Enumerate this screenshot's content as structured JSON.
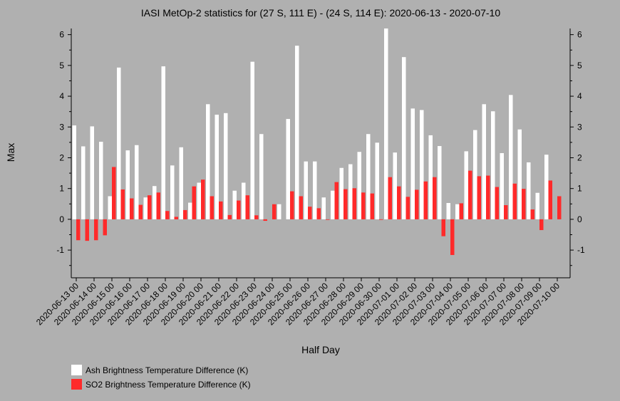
{
  "chart_data": {
    "type": "bar",
    "title": "IASI MetOp-2 statistics for (27 S, 111 E) - (24 S, 114 E): 2020-06-13 - 2020-07-10",
    "xlabel": "Half Day",
    "ylabel": "Max",
    "ylim": [
      -1.9,
      6.2
    ],
    "yticks": [
      -1,
      0,
      1,
      2,
      3,
      4,
      5,
      6
    ],
    "grid": false,
    "legend_position": "bottom-left",
    "categories": [
      "2020-06-13 00",
      "2020-06-13 12",
      "2020-06-14 00",
      "2020-06-14 12",
      "2020-06-15 00",
      "2020-06-15 12",
      "2020-06-16 00",
      "2020-06-16 12",
      "2020-06-17 00",
      "2020-06-17 12",
      "2020-06-18 00",
      "2020-06-18 12",
      "2020-06-19 00",
      "2020-06-19 12",
      "2020-06-20 00",
      "2020-06-20 12",
      "2020-06-21 00",
      "2020-06-21 12",
      "2020-06-22 00",
      "2020-06-22 12",
      "2020-06-23 00",
      "2020-06-23 12",
      "2020-06-24 00",
      "2020-06-24 12",
      "2020-06-25 00",
      "2020-06-25 12",
      "2020-06-26 00",
      "2020-06-26 12",
      "2020-06-27 00",
      "2020-06-27 12",
      "2020-06-28 00",
      "2020-06-28 12",
      "2020-06-29 00",
      "2020-06-29 12",
      "2020-06-30 00",
      "2020-06-30 12",
      "2020-07-01 00",
      "2020-07-01 12",
      "2020-07-02 00",
      "2020-07-02 12",
      "2020-07-03 00",
      "2020-07-03 12",
      "2020-07-04 00",
      "2020-07-04 12",
      "2020-07-05 00",
      "2020-07-05 12",
      "2020-07-06 00",
      "2020-07-06 12",
      "2020-07-07 00",
      "2020-07-07 12",
      "2020-07-08 00",
      "2020-07-08 12",
      "2020-07-09 00",
      "2020-07-09 12",
      "2020-07-10 00"
    ],
    "tick_labels": [
      "2020-06-13 00",
      "2020-06-14 00",
      "2020-06-15 00",
      "2020-06-16 00",
      "2020-06-17 00",
      "2020-06-18 00",
      "2020-06-19 00",
      "2020-06-20 00",
      "2020-06-21 00",
      "2020-06-22 00",
      "2020-06-23 00",
      "2020-06-24 00",
      "2020-06-25 00",
      "2020-06-26 00",
      "2020-06-27 00",
      "2020-06-28 00",
      "2020-06-29 00",
      "2020-06-30 00",
      "2020-07-01 00",
      "2020-07-02 00",
      "2020-07-03 00",
      "2020-07-04 00",
      "2020-07-05 00",
      "2020-07-06 00",
      "2020-07-07 00",
      "2020-07-08 00",
      "2020-07-09 00",
      "2020-07-10 00"
    ],
    "series": [
      {
        "name": "Ash Brightness Temperature Difference (K)",
        "color": "#ffffff",
        "values": [
          3.05,
          2.37,
          3.02,
          2.52,
          0.75,
          4.93,
          2.24,
          2.41,
          0.71,
          1.08,
          4.97,
          1.75,
          2.34,
          0.54,
          1.19,
          3.74,
          3.4,
          3.45,
          0.93,
          1.19,
          5.12,
          2.77,
          null,
          0.49,
          3.26,
          5.64,
          1.88,
          1.88,
          0.71,
          0.93,
          1.67,
          1.79,
          2.19,
          2.77,
          2.49,
          6.2,
          2.17,
          5.27,
          3.6,
          3.55,
          2.73,
          2.38,
          0.53,
          0.49,
          2.21,
          2.9,
          3.74,
          3.51,
          2.15,
          4.04,
          2.92,
          1.85,
          0.86,
          2.1,
          null
        ]
      },
      {
        "name": "SO2 Brightness Temperature Difference (K)",
        "color": "#ff2a2a",
        "values": [
          -0.68,
          -0.7,
          -0.68,
          -0.52,
          1.7,
          0.97,
          0.68,
          0.47,
          0.78,
          0.87,
          0.27,
          0.08,
          0.3,
          1.07,
          1.29,
          0.75,
          0.58,
          0.14,
          0.61,
          0.78,
          0.13,
          -0.05,
          0.49,
          null,
          0.91,
          0.75,
          0.41,
          0.36,
          0.0,
          1.21,
          0.98,
          1.01,
          0.87,
          0.84,
          -0.01,
          1.37,
          1.07,
          0.73,
          0.96,
          1.23,
          1.37,
          -0.55,
          -1.16,
          0.52,
          1.58,
          1.4,
          1.42,
          1.05,
          0.46,
          1.16,
          0.99,
          0.32,
          -0.35,
          1.26,
          0.75
        ]
      }
    ]
  }
}
